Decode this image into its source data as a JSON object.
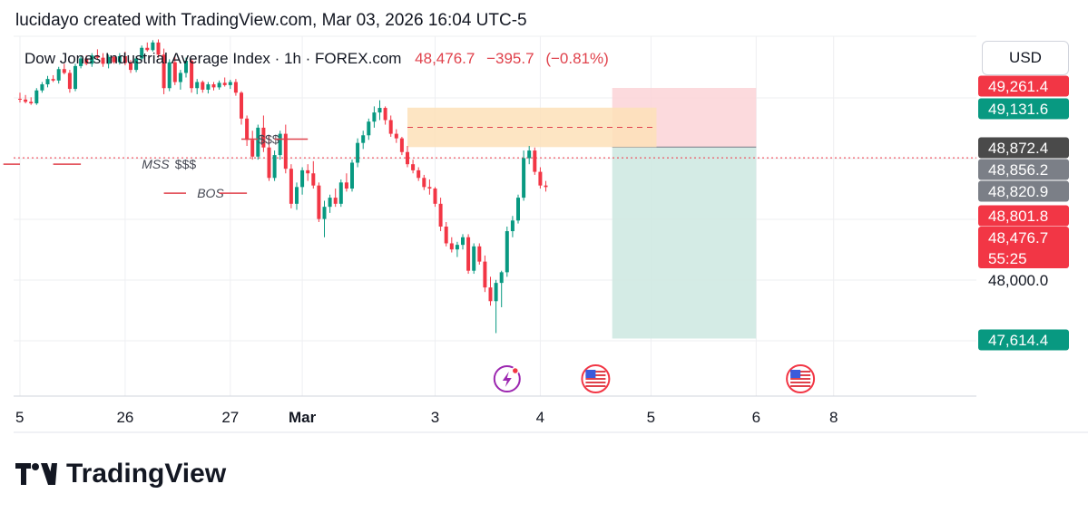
{
  "caption": {
    "author": "lucidayo",
    "text": "lucidayo created with TradingView.com, Mar 03, 2026 16:04 UTC-5"
  },
  "legend": {
    "symbol": "Dow Jones Industrial Average Index · 1h · FOREX.com",
    "price": "48,476.7",
    "change": "−395.7",
    "change_pct": "(−0.81%)"
  },
  "currency_button": "USD",
  "brand": {
    "name": "TradingView",
    "icon": "tradingview-logo-icon"
  },
  "colors": {
    "up": "#089981",
    "down": "#f23645",
    "grid": "#eeeff2",
    "stop_zone": "#fbd3d7",
    "target_zone": "#cfe9e2",
    "supply_zone": "#fde1b9",
    "annotation": "#e0424c",
    "dark_badge": "#4a4a4a",
    "grey_badge": "#7b7f87",
    "event_purple": "#9c27b0"
  },
  "chart_data": {
    "type": "candlestick",
    "title": "Dow Jones Industrial Average Index · 1h · FOREX.com",
    "x_labels": [
      "5",
      "26",
      "27",
      "Mar",
      "3",
      "4",
      "5",
      "6",
      "8"
    ],
    "x_label_index": [
      0,
      19,
      38,
      51,
      75,
      94,
      114,
      133,
      147
    ],
    "ylim": [
      47350,
      49600
    ],
    "y_tick": 48000,
    "grid": true,
    "current_price": 48801.8,
    "candles": [
      [
        49190,
        49230,
        49165,
        49185
      ],
      [
        49185,
        49215,
        49160,
        49170
      ],
      [
        49170,
        49200,
        49150,
        49160
      ],
      [
        49160,
        49260,
        49150,
        49245
      ],
      [
        49245,
        49300,
        49230,
        49285
      ],
      [
        49285,
        49340,
        49265,
        49320
      ],
      [
        49320,
        49345,
        49300,
        49310
      ],
      [
        49310,
        49400,
        49290,
        49385
      ],
      [
        49385,
        49420,
        49350,
        49360
      ],
      [
        49360,
        49380,
        49230,
        49255
      ],
      [
        49255,
        49420,
        49240,
        49405
      ],
      [
        49405,
        49470,
        49390,
        49455
      ],
      [
        49455,
        49475,
        49410,
        49420
      ],
      [
        49420,
        49490,
        49400,
        49475
      ],
      [
        49475,
        49515,
        49450,
        49460
      ],
      [
        49460,
        49490,
        49400,
        49420
      ],
      [
        49420,
        49480,
        49390,
        49465
      ],
      [
        49465,
        49475,
        49420,
        49430
      ],
      [
        49430,
        49490,
        49415,
        49470
      ],
      [
        49470,
        49500,
        49410,
        49425
      ],
      [
        49425,
        49445,
        49360,
        49380
      ],
      [
        49380,
        49470,
        49365,
        49455
      ],
      [
        49455,
        49540,
        49440,
        49525
      ],
      [
        49525,
        49560,
        49500,
        49510
      ],
      [
        49510,
        49575,
        49500,
        49560
      ],
      [
        49560,
        49580,
        49460,
        49480
      ],
      [
        49480,
        49520,
        49220,
        49260
      ],
      [
        49260,
        49450,
        49240,
        49430
      ],
      [
        49430,
        49470,
        49280,
        49300
      ],
      [
        49300,
        49380,
        49250,
        49360
      ],
      [
        49360,
        49460,
        49330,
        49440
      ],
      [
        49440,
        49455,
        49230,
        49260
      ],
      [
        49260,
        49320,
        49220,
        49300
      ],
      [
        49300,
        49310,
        49230,
        49250
      ],
      [
        49250,
        49300,
        49225,
        49285
      ],
      [
        49285,
        49300,
        49245,
        49265
      ],
      [
        49265,
        49310,
        49250,
        49295
      ],
      [
        49295,
        49330,
        49270,
        49280
      ],
      [
        49280,
        49315,
        49255,
        49300
      ],
      [
        49300,
        49320,
        49210,
        49230
      ],
      [
        49230,
        49240,
        49020,
        49060
      ],
      [
        49060,
        49080,
        48880,
        48920
      ],
      [
        48920,
        48980,
        48790,
        48810
      ],
      [
        48810,
        49020,
        48790,
        49000
      ],
      [
        49000,
        49080,
        48840,
        48870
      ],
      [
        48870,
        48950,
        48650,
        48670
      ],
      [
        48670,
        48850,
        48650,
        48820
      ],
      [
        48820,
        48980,
        48790,
        48960
      ],
      [
        48960,
        49020,
        48700,
        48730
      ],
      [
        48730,
        48760,
        48470,
        48500
      ],
      [
        48500,
        48640,
        48460,
        48610
      ],
      [
        48610,
        48740,
        48560,
        48720
      ],
      [
        48720,
        48760,
        48650,
        48700
      ],
      [
        48700,
        48780,
        48600,
        48620
      ],
      [
        48620,
        48640,
        48380,
        48400
      ],
      [
        48400,
        48520,
        48280,
        48480
      ],
      [
        48480,
        48560,
        48440,
        48540
      ],
      [
        48540,
        48600,
        48480,
        48500
      ],
      [
        48500,
        48660,
        48480,
        48640
      ],
      [
        48640,
        48700,
        48580,
        48600
      ],
      [
        48600,
        48790,
        48580,
        48770
      ],
      [
        48770,
        48930,
        48740,
        48900
      ],
      [
        48900,
        48980,
        48860,
        48950
      ],
      [
        48950,
        49060,
        48920,
        49040
      ],
      [
        49040,
        49140,
        49000,
        49100
      ],
      [
        49100,
        49180,
        49050,
        49130
      ],
      [
        49130,
        49140,
        49020,
        49050
      ],
      [
        49050,
        49080,
        48940,
        48960
      ],
      [
        48960,
        48990,
        48900,
        48930
      ],
      [
        48930,
        48940,
        48820,
        48840
      ],
      [
        48840,
        48880,
        48740,
        48760
      ],
      [
        48760,
        48790,
        48700,
        48720
      ],
      [
        48720,
        48740,
        48650,
        48670
      ],
      [
        48670,
        48690,
        48590,
        48610
      ],
      [
        48610,
        48660,
        48560,
        48600
      ],
      [
        48600,
        48610,
        48480,
        48500
      ],
      [
        48500,
        48540,
        48320,
        48350
      ],
      [
        48350,
        48380,
        48220,
        48240
      ],
      [
        48240,
        48280,
        48180,
        48200
      ],
      [
        48200,
        48250,
        48150,
        48230
      ],
      [
        48230,
        48300,
        48200,
        48280
      ],
      [
        48280,
        48300,
        48040,
        48060
      ],
      [
        48060,
        48240,
        48040,
        48220
      ],
      [
        48220,
        48240,
        48100,
        48120
      ],
      [
        48120,
        48160,
        47920,
        47950
      ],
      [
        47950,
        48020,
        47830,
        47860
      ],
      [
        47860,
        48000,
        47650,
        47980
      ],
      [
        47980,
        48060,
        47820,
        48050
      ],
      [
        48050,
        48350,
        48020,
        48320
      ],
      [
        48320,
        48420,
        48280,
        48390
      ],
      [
        48390,
        48560,
        48370,
        48540
      ],
      [
        48540,
        48850,
        48520,
        48800
      ],
      [
        48800,
        48880,
        48760,
        48850
      ],
      [
        48850,
        48870,
        48690,
        48710
      ],
      [
        48710,
        48740,
        48600,
        48620
      ],
      [
        48620,
        48650,
        48580,
        48610
      ]
    ],
    "levels": [
      {
        "price": 49261.4,
        "label": "49,261.4",
        "color": "#f23645"
      },
      {
        "price": 49131.6,
        "label": "49,131.6",
        "color": "#089981"
      },
      {
        "price": 48872.4,
        "label": "48,872.4",
        "color": "#4a4a4a"
      },
      {
        "price": 48856.2,
        "label": "48,856.2",
        "color": "#7b7f87"
      },
      {
        "price": 48820.9,
        "label": "48,820.9",
        "color": "#7b7f87"
      },
      {
        "price": 48801.8,
        "label": "48,801.8",
        "color": "#f23645"
      },
      {
        "price": 48476.7,
        "label": "48,476.7",
        "color": "#f23645",
        "sub": "55:25"
      },
      {
        "price": 48000.0,
        "label": "48,000.0",
        "color": "none"
      },
      {
        "price": 47614.4,
        "label": "47,614.4",
        "color": "#089981"
      }
    ],
    "annotations": [
      {
        "text": "MSS",
        "x": 22,
        "y": 48760
      },
      {
        "text": "$$$",
        "x": 28,
        "y": 48760
      },
      {
        "text": "BOS",
        "x": 32,
        "y": 48570
      },
      {
        "text": "$$$",
        "x": 43,
        "y": 48925
      }
    ],
    "position_tool": {
      "entry": 48872.4,
      "stop": 49261.4,
      "target": 47614.4,
      "x_start": 107,
      "x_end": 133
    },
    "supply_zone": {
      "top": 49131.6,
      "bottom": 48872.4,
      "x_start": 70,
      "x_end": 115
    },
    "events": [
      {
        "x": 88,
        "icon": "lightning-event-icon"
      },
      {
        "x": 104,
        "icon": "us-flag-event-icon"
      },
      {
        "x": 141,
        "icon": "us-flag-event-icon"
      }
    ]
  }
}
